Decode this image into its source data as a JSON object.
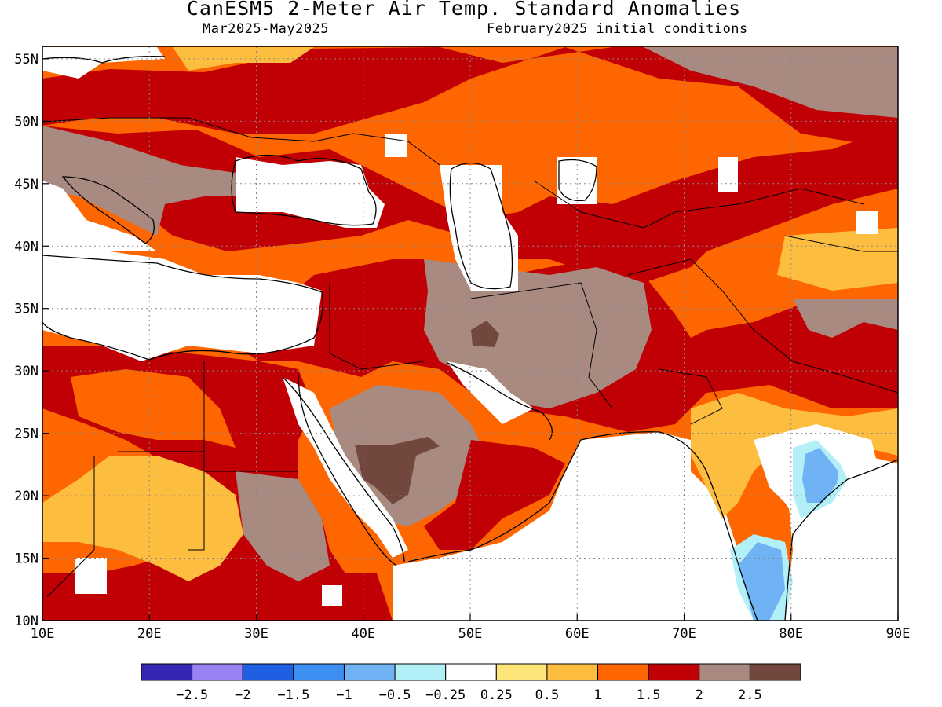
{
  "title": "CanESM5 2-Meter Air Temp. Standard Anomalies",
  "subtitle_left": "Mar2025-May2025",
  "subtitle_right": "February2025 initial conditions",
  "map": {
    "lon_range": [
      10,
      90
    ],
    "lat_range": [
      10,
      56
    ],
    "x_ticks": [
      {
        "value": 10,
        "label": "10E"
      },
      {
        "value": 20,
        "label": "20E"
      },
      {
        "value": 30,
        "label": "30E"
      },
      {
        "value": 40,
        "label": "40E"
      },
      {
        "value": 50,
        "label": "50E"
      },
      {
        "value": 60,
        "label": "60E"
      },
      {
        "value": 70,
        "label": "70E"
      },
      {
        "value": 80,
        "label": "80E"
      },
      {
        "value": 90,
        "label": "90E"
      }
    ],
    "y_ticks": [
      {
        "value": 10,
        "label": "10N"
      },
      {
        "value": 15,
        "label": "15N"
      },
      {
        "value": 20,
        "label": "20N"
      },
      {
        "value": 25,
        "label": "25N"
      },
      {
        "value": 30,
        "label": "30N"
      },
      {
        "value": 35,
        "label": "35N"
      },
      {
        "value": 40,
        "label": "40N"
      },
      {
        "value": 45,
        "label": "45N"
      },
      {
        "value": 50,
        "label": "50N"
      },
      {
        "value": 55,
        "label": "55N"
      }
    ],
    "grid": "dotted"
  },
  "legend": {
    "colors": [
      "#3427b4",
      "#9a82f5",
      "#1f60e2",
      "#3d8ff2",
      "#70b3f5",
      "#b3eff7",
      "#ffffff",
      "#fde57a",
      "#fdbd3f",
      "#fd6600",
      "#c10005",
      "#a98a80",
      "#72483e"
    ],
    "labels": [
      "-2.5",
      "-2",
      "-1.5",
      "-1",
      "-0.5",
      "-0.25",
      "0.25",
      "0.5",
      "1",
      "1.5",
      "2",
      "2.5"
    ]
  }
}
